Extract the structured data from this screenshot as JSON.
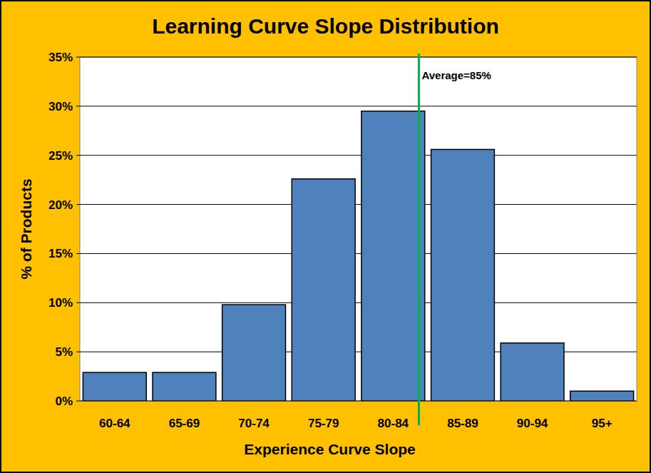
{
  "chart_data": {
    "type": "bar",
    "title": "Learning Curve Slope Distribution",
    "x_label": "Experience Curve Slope",
    "y_label": "% of Products",
    "categories": [
      "60-64",
      "65-69",
      "70-74",
      "75-79",
      "80-84",
      "85-89",
      "90-94",
      "95+"
    ],
    "values": [
      2.9,
      2.9,
      9.8,
      22.6,
      29.5,
      25.6,
      5.9,
      1.0
    ],
    "color": "#4f81bd",
    "ylim": [
      0,
      35
    ],
    "yticks": [
      {
        "value": 0,
        "label": "0%"
      },
      {
        "value": 5,
        "label": "5%"
      },
      {
        "value": 10,
        "label": "10%"
      },
      {
        "value": 15,
        "label": "15%"
      },
      {
        "value": 20,
        "label": "20%"
      },
      {
        "value": 25,
        "label": "25%"
      },
      {
        "value": 30,
        "label": "30%"
      },
      {
        "value": 35,
        "label": "35%"
      }
    ],
    "grid": true,
    "annotations": [
      {
        "text": "Average=85%"
      }
    ]
  }
}
